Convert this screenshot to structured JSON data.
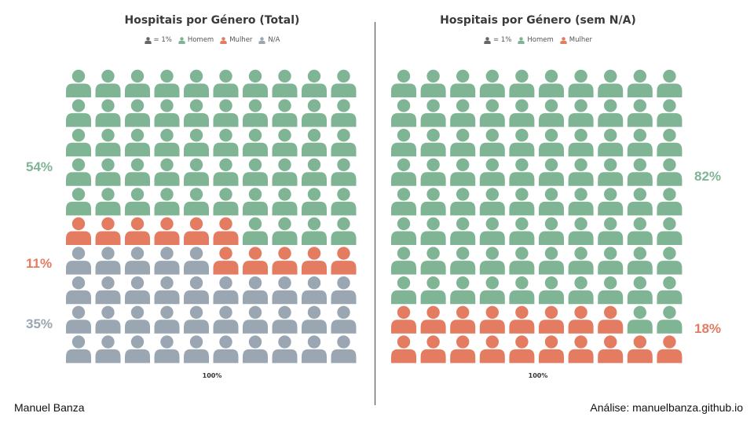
{
  "colors": {
    "homem": "#7fb595",
    "mulher": "#e37c61",
    "na": "#9aa7b3",
    "unit": "#666666"
  },
  "footer": {
    "author": "Manuel Banza",
    "analysis": "Análise: manuelbanza.github.io"
  },
  "chart_data": [
    {
      "type": "waffle",
      "title": "Hospitais por Género (Total)",
      "legend": [
        {
          "label": "= 1%",
          "color_key": "unit"
        },
        {
          "label": "Homem",
          "color_key": "homem"
        },
        {
          "label": "Mulher",
          "color_key": "mulher"
        },
        {
          "label": "N/A",
          "color_key": "na"
        }
      ],
      "grid": {
        "rows": 10,
        "cols": 10
      },
      "categories": [
        "Homem",
        "Mulher",
        "N/A"
      ],
      "values": [
        54,
        11,
        35
      ],
      "color_keys": [
        "homem",
        "mulher",
        "na"
      ],
      "percent_labels": [
        "54%",
        "11%",
        "35%"
      ],
      "total_label": "100%"
    },
    {
      "type": "waffle",
      "title": "Hospitais por Género (sem N/A)",
      "legend": [
        {
          "label": "= 1%",
          "color_key": "unit"
        },
        {
          "label": "Homem",
          "color_key": "homem"
        },
        {
          "label": "Mulher",
          "color_key": "mulher"
        }
      ],
      "grid": {
        "rows": 10,
        "cols": 10
      },
      "categories": [
        "Homem",
        "Mulher"
      ],
      "values": [
        82,
        18
      ],
      "color_keys": [
        "homem",
        "mulher"
      ],
      "percent_labels": [
        "82%",
        "18%"
      ],
      "total_label": "100%"
    }
  ]
}
